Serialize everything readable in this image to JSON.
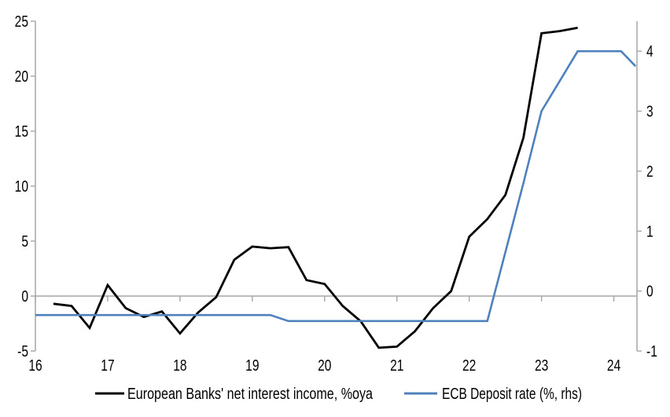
{
  "chart_data": {
    "type": "line",
    "title": "",
    "legend_position": "bottom",
    "grid": "zero-line-only",
    "x_axis": {
      "tick_values": [
        16,
        17,
        18,
        19,
        20,
        21,
        22,
        23,
        24
      ],
      "tick_labels": [
        "16",
        "17",
        "18",
        "19",
        "20",
        "21",
        "22",
        "23",
        "24"
      ],
      "range": [
        16,
        24.32
      ]
    },
    "y_axis_left": {
      "tick_values": [
        -5,
        0,
        5,
        10,
        15,
        20,
        25
      ],
      "tick_labels": [
        "-5",
        "0",
        "5",
        "10",
        "15",
        "20",
        "25"
      ],
      "range": [
        -5,
        25
      ]
    },
    "y_axis_right": {
      "tick_values": [
        -1,
        0,
        1,
        2,
        3,
        4
      ],
      "tick_labels": [
        "-1",
        "0",
        "1",
        "2",
        "3",
        "4"
      ],
      "range": [
        -1,
        4.5
      ]
    },
    "series": [
      {
        "name": "European Banks' net interest income, %oya",
        "axis": "left",
        "color": "#000000",
        "x": [
          16.25,
          16.5,
          16.75,
          17.0,
          17.25,
          17.5,
          17.75,
          18.0,
          18.25,
          18.5,
          18.75,
          19.0,
          19.25,
          19.5,
          19.75,
          20.0,
          20.25,
          20.5,
          20.75,
          21.0,
          21.25,
          21.5,
          21.75,
          22.0,
          22.25,
          22.5,
          22.75,
          23.0,
          23.25,
          23.5
        ],
        "values": [
          -0.7,
          -0.9,
          -2.9,
          1.0,
          -1.1,
          -1.9,
          -1.4,
          -3.4,
          -1.5,
          -0.1,
          3.3,
          4.5,
          4.35,
          4.45,
          1.45,
          1.1,
          -0.9,
          -2.3,
          -4.7,
          -4.6,
          -3.2,
          -1.1,
          0.45,
          5.4,
          7.0,
          9.2,
          14.4,
          23.9,
          24.1,
          24.4
        ]
      },
      {
        "name": "ECB Deposit rate (%, rhs)",
        "axis": "right",
        "color": "#4F81BD",
        "x": [
          16.0,
          16.25,
          16.5,
          16.75,
          17.0,
          17.25,
          17.5,
          17.75,
          18.0,
          18.25,
          18.5,
          18.75,
          19.0,
          19.25,
          19.5,
          19.75,
          20.0,
          20.25,
          20.5,
          20.75,
          21.0,
          21.25,
          21.5,
          21.75,
          22.0,
          22.25,
          22.5,
          22.75,
          23.0,
          23.25,
          23.5,
          23.75,
          24.0,
          24.1,
          24.3
        ],
        "values": [
          -0.4,
          -0.4,
          -0.4,
          -0.4,
          -0.4,
          -0.4,
          -0.4,
          -0.4,
          -0.4,
          -0.4,
          -0.4,
          -0.4,
          -0.4,
          -0.4,
          -0.5,
          -0.5,
          -0.5,
          -0.5,
          -0.5,
          -0.5,
          -0.5,
          -0.5,
          -0.5,
          -0.5,
          -0.5,
          -0.5,
          0.65,
          1.8,
          3.0,
          3.5,
          4.0,
          4.0,
          4.0,
          4.0,
          3.75
        ]
      }
    ]
  },
  "colors": {
    "background": "#FFFFFF",
    "axis": "#A6A6A6",
    "zero_line": "#A6A6A6",
    "text": "#000000",
    "series_net_interest_income": "#000000",
    "series_ecb_deposit_rate": "#4F81BD"
  }
}
